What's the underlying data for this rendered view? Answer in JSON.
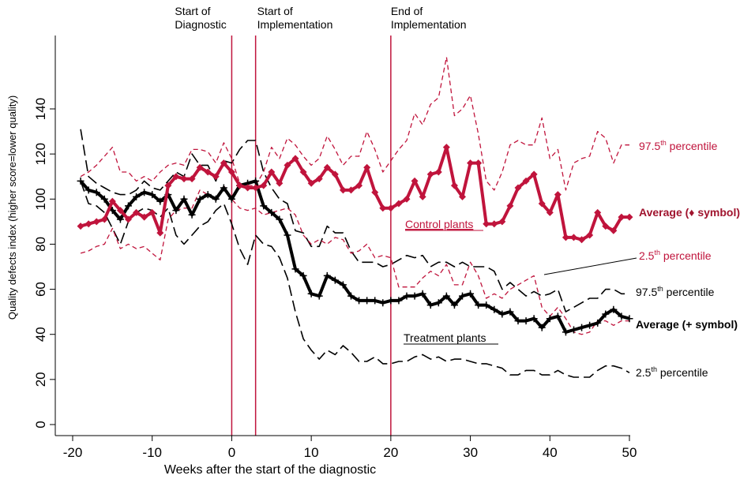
{
  "chart_data": {
    "type": "line",
    "xlabel": "Weeks after the start of the diagnostic",
    "ylabel": "Quality defects index (higher score=lower quality)",
    "xlim": [
      -21,
      51
    ],
    "ylim": [
      -2,
      160
    ],
    "xticks": [
      "-20",
      "-10",
      "0",
      "10",
      "20",
      "30",
      "40",
      "50"
    ],
    "xtick_values": [
      -20,
      -10,
      0,
      10,
      20,
      30,
      40,
      50
    ],
    "yticks": [
      "0",
      "20",
      "40",
      "60",
      "80",
      "100",
      "120",
      "140"
    ],
    "ytick_values": [
      0,
      20,
      40,
      60,
      80,
      100,
      120,
      140
    ],
    "grid": false,
    "colors": {
      "control": "#c0143c",
      "treatment": "#000000"
    },
    "events": [
      {
        "x": 0,
        "label_lines": [
          "Start of",
          "Diagnostic"
        ]
      },
      {
        "x": 3,
        "label_lines": [
          "Start of",
          "Implementation"
        ]
      },
      {
        "x": 20,
        "label_lines": [
          "End of",
          "Implementation"
        ]
      }
    ],
    "x": [
      -19,
      -18,
      -17,
      -16,
      -15,
      -14,
      -13,
      -12,
      -11,
      -10,
      -9,
      -8,
      -7,
      -6,
      -5,
      -4,
      -3,
      -2,
      -1,
      0,
      1,
      2,
      3,
      4,
      5,
      6,
      7,
      8,
      9,
      10,
      11,
      12,
      13,
      14,
      15,
      16,
      17,
      18,
      19,
      20,
      21,
      22,
      23,
      24,
      25,
      26,
      27,
      28,
      29,
      30,
      31,
      32,
      33,
      34,
      35,
      36,
      37,
      38,
      39,
      40,
      41,
      42,
      43,
      44,
      45,
      46,
      47,
      48,
      49,
      50
    ],
    "series": [
      {
        "group": "control",
        "stat": "average",
        "values": [
          88,
          89,
          90,
          91,
          99,
          95,
          91,
          94,
          92,
          94,
          85,
          106,
          110,
          109,
          109,
          114,
          112,
          110,
          116,
          112,
          106,
          105,
          105,
          106,
          112,
          107,
          115,
          118,
          112,
          107,
          109,
          114,
          111,
          104,
          104,
          106,
          114,
          103,
          96,
          96,
          98,
          100,
          108,
          101,
          111,
          112,
          123,
          106,
          101,
          116,
          116,
          89,
          89,
          90,
          97,
          105,
          108,
          111,
          98,
          94,
          102,
          83,
          83,
          82,
          84,
          94,
          88,
          86,
          92,
          92
        ]
      },
      {
        "group": "control",
        "stat": "97.5th percentile",
        "values": [
          110,
          112,
          115,
          119,
          123,
          112,
          112,
          108,
          110,
          108,
          112,
          115,
          116,
          115,
          122,
          122,
          121,
          116,
          125,
          118,
          107,
          106,
          106,
          112,
          123,
          118,
          127,
          124,
          119,
          115,
          118,
          128,
          122,
          115,
          119,
          119,
          130,
          122,
          112,
          117,
          122,
          126,
          138,
          133,
          142,
          145,
          163,
          137,
          140,
          146,
          129,
          108,
          104,
          112,
          124,
          126,
          124,
          124,
          136,
          118,
          122,
          104,
          116,
          118,
          119,
          130,
          127,
          116,
          124,
          124
        ]
      },
      {
        "group": "control",
        "stat": "2.5th percentile",
        "values": [
          76,
          77,
          79,
          80,
          87,
          78,
          80,
          78,
          79,
          76,
          73,
          91,
          95,
          96,
          96,
          104,
          102,
          100,
          106,
          100,
          96,
          95,
          96,
          93,
          94,
          95,
          96,
          93,
          84,
          80,
          82,
          80,
          83,
          82,
          76,
          77,
          80,
          74,
          75,
          74,
          61,
          61,
          61,
          65,
          68,
          66,
          71,
          62,
          62,
          72,
          66,
          56,
          58,
          56,
          60,
          62,
          64,
          66,
          52,
          48,
          52,
          47,
          41,
          40,
          41,
          46,
          46,
          44,
          46,
          46
        ]
      },
      {
        "group": "treatment",
        "stat": "average",
        "values": [
          108,
          104,
          103,
          100,
          95,
          91,
          97,
          101,
          103,
          102,
          99,
          102,
          95,
          100,
          93,
          100,
          102,
          100,
          105,
          100,
          106,
          107,
          108,
          97,
          94,
          91,
          84,
          69,
          66,
          58,
          57,
          66,
          64,
          62,
          57,
          55,
          55,
          55,
          54,
          55,
          55,
          57,
          57,
          58,
          53,
          54,
          57,
          53,
          57,
          58,
          53,
          53,
          51,
          49,
          50,
          46,
          46,
          47,
          43,
          47,
          48,
          41,
          42,
          43,
          44,
          45,
          49,
          51,
          48,
          47
        ]
      },
      {
        "group": "treatment",
        "stat": "97.5th percentile",
        "values": [
          131,
          110,
          107,
          105,
          103,
          102,
          102,
          104,
          108,
          105,
          104,
          108,
          112,
          110,
          120,
          115,
          115,
          108,
          117,
          116,
          122,
          126,
          126,
          112,
          105,
          100,
          98,
          86,
          85,
          79,
          79,
          88,
          85,
          85,
          77,
          72,
          72,
          72,
          70,
          71,
          73,
          75,
          74,
          75,
          70,
          72,
          72,
          70,
          72,
          70,
          70,
          70,
          68,
          60,
          63,
          60,
          57,
          59,
          57,
          58,
          60,
          50,
          52,
          54,
          56,
          56,
          60,
          60,
          58,
          58
        ]
      },
      {
        "group": "treatment",
        "stat": "2.5th percentile",
        "values": [
          108,
          98,
          97,
          94,
          87,
          80,
          90,
          94,
          96,
          95,
          92,
          96,
          84,
          80,
          84,
          88,
          90,
          95,
          98,
          89,
          78,
          71,
          84,
          80,
          79,
          74,
          65,
          50,
          38,
          33,
          29,
          33,
          31,
          35,
          32,
          28,
          28,
          30,
          27,
          27,
          28,
          28,
          30,
          31,
          29,
          30,
          28,
          29,
          29,
          28,
          27,
          27,
          26,
          25,
          22,
          22,
          24,
          24,
          22,
          22,
          24,
          22,
          21,
          21,
          21,
          24,
          26,
          26,
          25,
          23
        ]
      }
    ],
    "annotations": {
      "control_plants": "Control plants",
      "treatment_plants": "Treatment plants",
      "control_975": {
        "pre": "97.5",
        "sup": "th",
        "post": " percentile"
      },
      "control_avg": "Average (♦ symbol)",
      "control_25": {
        "pre": "2.5",
        "sup": "th",
        "post": " percentile"
      },
      "treatment_975": {
        "pre": "97.5",
        "sup": "th",
        "post": " percentile"
      },
      "treatment_avg": "Average (+ symbol)",
      "treatment_25": {
        "pre": "2.5",
        "sup": "th",
        "post": " percentile"
      }
    }
  }
}
